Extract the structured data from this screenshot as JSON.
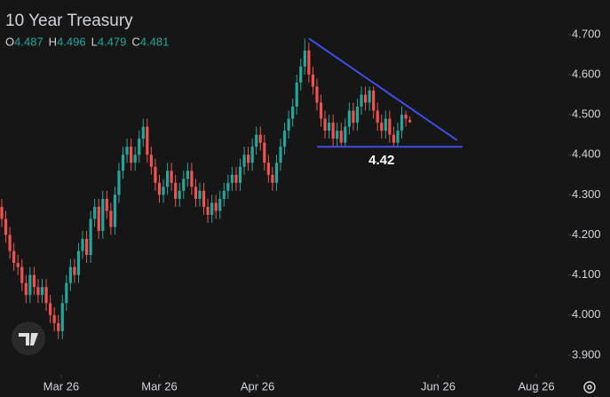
{
  "chart_data": {
    "type": "candlestick",
    "title": "10 Year Treasury",
    "legend": [
      {
        "label": "O",
        "value": 4.487
      },
      {
        "label": "H",
        "value": 4.496
      },
      {
        "label": "L",
        "value": 4.479
      },
      {
        "label": "C",
        "value": 4.481
      }
    ],
    "legend_color": "#26a69a",
    "up_color": "#26a69a",
    "down_color": "#ef5350",
    "open": [
      4.27,
      4.24,
      4.2,
      4.16,
      4.13,
      4.12,
      4.08,
      4.05,
      4.1,
      4.07,
      4.05,
      4.07,
      4.03,
      4.0,
      3.98,
      3.96,
      4.03,
      4.08,
      4.12,
      4.1,
      4.16,
      4.19,
      4.15,
      4.24,
      4.27,
      4.21,
      4.29,
      4.26,
      4.22,
      4.3,
      4.36,
      4.4,
      4.42,
      4.38,
      4.4,
      4.44,
      4.47,
      4.4,
      4.37,
      4.33,
      4.3,
      4.32,
      4.36,
      4.33,
      4.29,
      4.31,
      4.34,
      4.36,
      4.32,
      4.29,
      4.31,
      4.27,
      4.25,
      4.28,
      4.26,
      4.29,
      4.31,
      4.33,
      4.35,
      4.33,
      4.37,
      4.4,
      4.38,
      4.42,
      4.45,
      4.43,
      4.38,
      4.35,
      4.33,
      4.38,
      4.42,
      4.46,
      4.49,
      4.52,
      4.58,
      4.62,
      4.66,
      4.6,
      4.57,
      4.53,
      4.49,
      4.46,
      4.48,
      4.44,
      4.46,
      4.43,
      4.47,
      4.51,
      4.48,
      4.52,
      4.55,
      4.53,
      4.56,
      4.51,
      4.48,
      4.46,
      4.49,
      4.45,
      4.43,
      4.46,
      4.5,
      4.487
    ],
    "high": [
      4.29,
      4.26,
      4.22,
      4.18,
      4.15,
      4.14,
      4.1,
      4.12,
      4.12,
      4.09,
      4.09,
      4.09,
      4.05,
      4.02,
      4.0,
      4.05,
      4.1,
      4.14,
      4.14,
      4.18,
      4.21,
      4.21,
      4.26,
      4.29,
      4.29,
      4.31,
      4.31,
      4.28,
      4.32,
      4.38,
      4.42,
      4.44,
      4.44,
      4.42,
      4.46,
      4.49,
      4.49,
      4.42,
      4.39,
      4.35,
      4.34,
      4.38,
      4.38,
      4.35,
      4.33,
      4.36,
      4.38,
      4.38,
      4.34,
      4.33,
      4.33,
      4.29,
      4.3,
      4.3,
      4.31,
      4.33,
      4.35,
      4.37,
      4.37,
      4.39,
      4.42,
      4.42,
      4.44,
      4.47,
      4.47,
      4.45,
      4.4,
      4.37,
      4.4,
      4.44,
      4.48,
      4.51,
      4.54,
      4.6,
      4.64,
      4.69,
      4.68,
      4.62,
      4.59,
      4.55,
      4.51,
      4.5,
      4.5,
      4.48,
      4.48,
      4.49,
      4.53,
      4.53,
      4.54,
      4.57,
      4.57,
      4.57,
      4.57,
      4.53,
      4.5,
      4.51,
      4.51,
      4.47,
      4.48,
      4.52,
      4.51,
      4.496
    ],
    "low": [
      4.22,
      4.18,
      4.14,
      4.11,
      4.1,
      4.06,
      4.03,
      4.03,
      4.05,
      4.03,
      4.03,
      4.01,
      3.98,
      3.96,
      3.94,
      3.94,
      4.01,
      4.06,
      4.08,
      4.08,
      4.14,
      4.13,
      4.13,
      4.22,
      4.19,
      4.19,
      4.24,
      4.2,
      4.2,
      4.28,
      4.34,
      4.38,
      4.36,
      4.36,
      4.38,
      4.42,
      4.38,
      4.35,
      4.31,
      4.28,
      4.28,
      4.3,
      4.31,
      4.27,
      4.27,
      4.29,
      4.32,
      4.3,
      4.27,
      4.27,
      4.25,
      4.23,
      4.23,
      4.24,
      4.24,
      4.27,
      4.29,
      4.31,
      4.31,
      4.31,
      4.35,
      4.36,
      4.36,
      4.4,
      4.41,
      4.36,
      4.33,
      4.31,
      4.31,
      4.36,
      4.4,
      4.44,
      4.47,
      4.5,
      4.56,
      4.6,
      4.58,
      4.55,
      4.51,
      4.47,
      4.44,
      4.44,
      4.42,
      4.42,
      4.42,
      4.42,
      4.45,
      4.46,
      4.46,
      4.5,
      4.51,
      4.51,
      4.49,
      4.46,
      4.44,
      4.44,
      4.43,
      4.42,
      4.42,
      4.44,
      4.47,
      4.479
    ],
    "close": [
      4.24,
      4.2,
      4.16,
      4.13,
      4.12,
      4.08,
      4.05,
      4.1,
      4.07,
      4.05,
      4.07,
      4.03,
      4.0,
      3.98,
      3.96,
      4.03,
      4.08,
      4.12,
      4.1,
      4.16,
      4.19,
      4.15,
      4.24,
      4.27,
      4.21,
      4.29,
      4.26,
      4.22,
      4.3,
      4.36,
      4.4,
      4.42,
      4.38,
      4.4,
      4.44,
      4.47,
      4.4,
      4.37,
      4.33,
      4.3,
      4.32,
      4.36,
      4.33,
      4.29,
      4.31,
      4.34,
      4.36,
      4.32,
      4.29,
      4.31,
      4.27,
      4.25,
      4.28,
      4.26,
      4.29,
      4.31,
      4.33,
      4.35,
      4.33,
      4.37,
      4.4,
      4.38,
      4.42,
      4.45,
      4.43,
      4.38,
      4.35,
      4.33,
      4.38,
      4.42,
      4.46,
      4.49,
      4.52,
      4.58,
      4.62,
      4.66,
      4.6,
      4.57,
      4.53,
      4.49,
      4.46,
      4.48,
      4.44,
      4.46,
      4.43,
      4.47,
      4.51,
      4.48,
      4.52,
      4.55,
      4.53,
      4.56,
      4.51,
      4.48,
      4.46,
      4.49,
      4.45,
      4.43,
      4.46,
      4.5,
      4.49,
      4.481
    ],
    "xlim": [
      -0.44,
      140.2
    ],
    "xticks": [
      {
        "value": 14.7,
        "label": "Mar 26"
      },
      {
        "value": 39,
        "label": "Mar 26"
      },
      {
        "value": 63.3,
        "label": "Apr 26"
      },
      {
        "value": 108,
        "label": "Jun 26"
      },
      {
        "value": 132.3,
        "label": "Aug 26"
      }
    ],
    "ylim": [
      3.851,
      4.786
    ],
    "yticks": [
      {
        "value": 4.7,
        "label": "4.700"
      },
      {
        "value": 4.6,
        "label": "4.600"
      },
      {
        "value": 4.5,
        "label": "4.500"
      },
      {
        "value": 4.4,
        "label": "4.400"
      },
      {
        "value": 4.3,
        "label": "4.300"
      },
      {
        "value": 4.2,
        "label": "4.200"
      },
      {
        "value": 4.1,
        "label": "4.100"
      },
      {
        "value": 4.0,
        "label": "4.000"
      },
      {
        "value": 3.9,
        "label": "3.900"
      }
    ],
    "trendlines": [
      {
        "x": [
          76,
          112.7
        ],
        "y": [
          4.69,
          4.436
        ],
        "color": "#3f4de8"
      },
      {
        "x": [
          78,
          114
        ],
        "y": [
          4.42,
          4.42
        ],
        "color": "#3f4de8"
      }
    ],
    "annotation": {
      "text": "4.42",
      "x": 94,
      "y": 4.42
    }
  }
}
